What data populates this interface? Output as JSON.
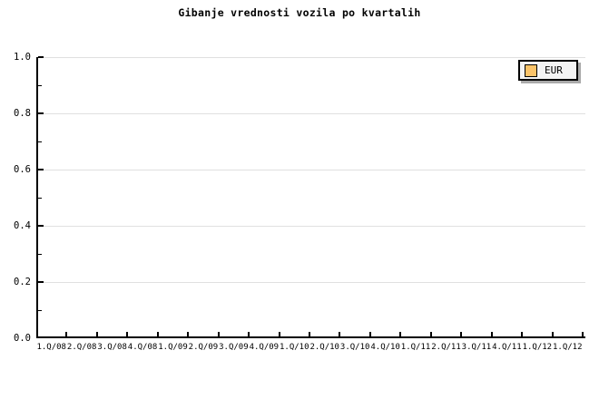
{
  "chart_data": {
    "type": "line",
    "title": "Gibanje vrednosti vozila po kvartalih",
    "categories": [
      "1.Q/08",
      "2.Q/08",
      "3.Q/08",
      "4.Q/08",
      "1.Q/09",
      "2.Q/09",
      "3.Q/09",
      "4.Q/09",
      "1.Q/10",
      "2.Q/10",
      "3.Q/10",
      "4.Q/10",
      "1.Q/11",
      "2.Q/11",
      "3.Q/11",
      "4.Q/11",
      "1.Q/12",
      "1.Q/12"
    ],
    "series": [
      {
        "name": "EUR",
        "color": "#fac369",
        "values": []
      }
    ],
    "xlabel": "",
    "ylabel": "",
    "ylim": [
      0.0,
      1.0
    ],
    "y_tick_values": [
      0,
      0.2,
      0.4,
      0.6,
      0.8,
      1.0
    ],
    "y_tick_labels": [
      "0.0",
      "0.2",
      "0.4",
      "0.6",
      "0.8",
      "1.0"
    ],
    "y_minor_tick_step": 0.1,
    "grid": "horizontal-major-only",
    "legend_position": "top-right"
  },
  "legend": {
    "entries": [
      {
        "label": "EUR",
        "swatch_color": "#fac369"
      }
    ]
  },
  "colors": {
    "background": "#ffffff",
    "axis": "#000000",
    "gridline": "#e0e0e0",
    "text": "#000000",
    "legend_background": "#f4f4f4",
    "legend_border": "#000000",
    "legend_shadow": "#aaaaaa",
    "eur_swatch": "#fac369"
  }
}
